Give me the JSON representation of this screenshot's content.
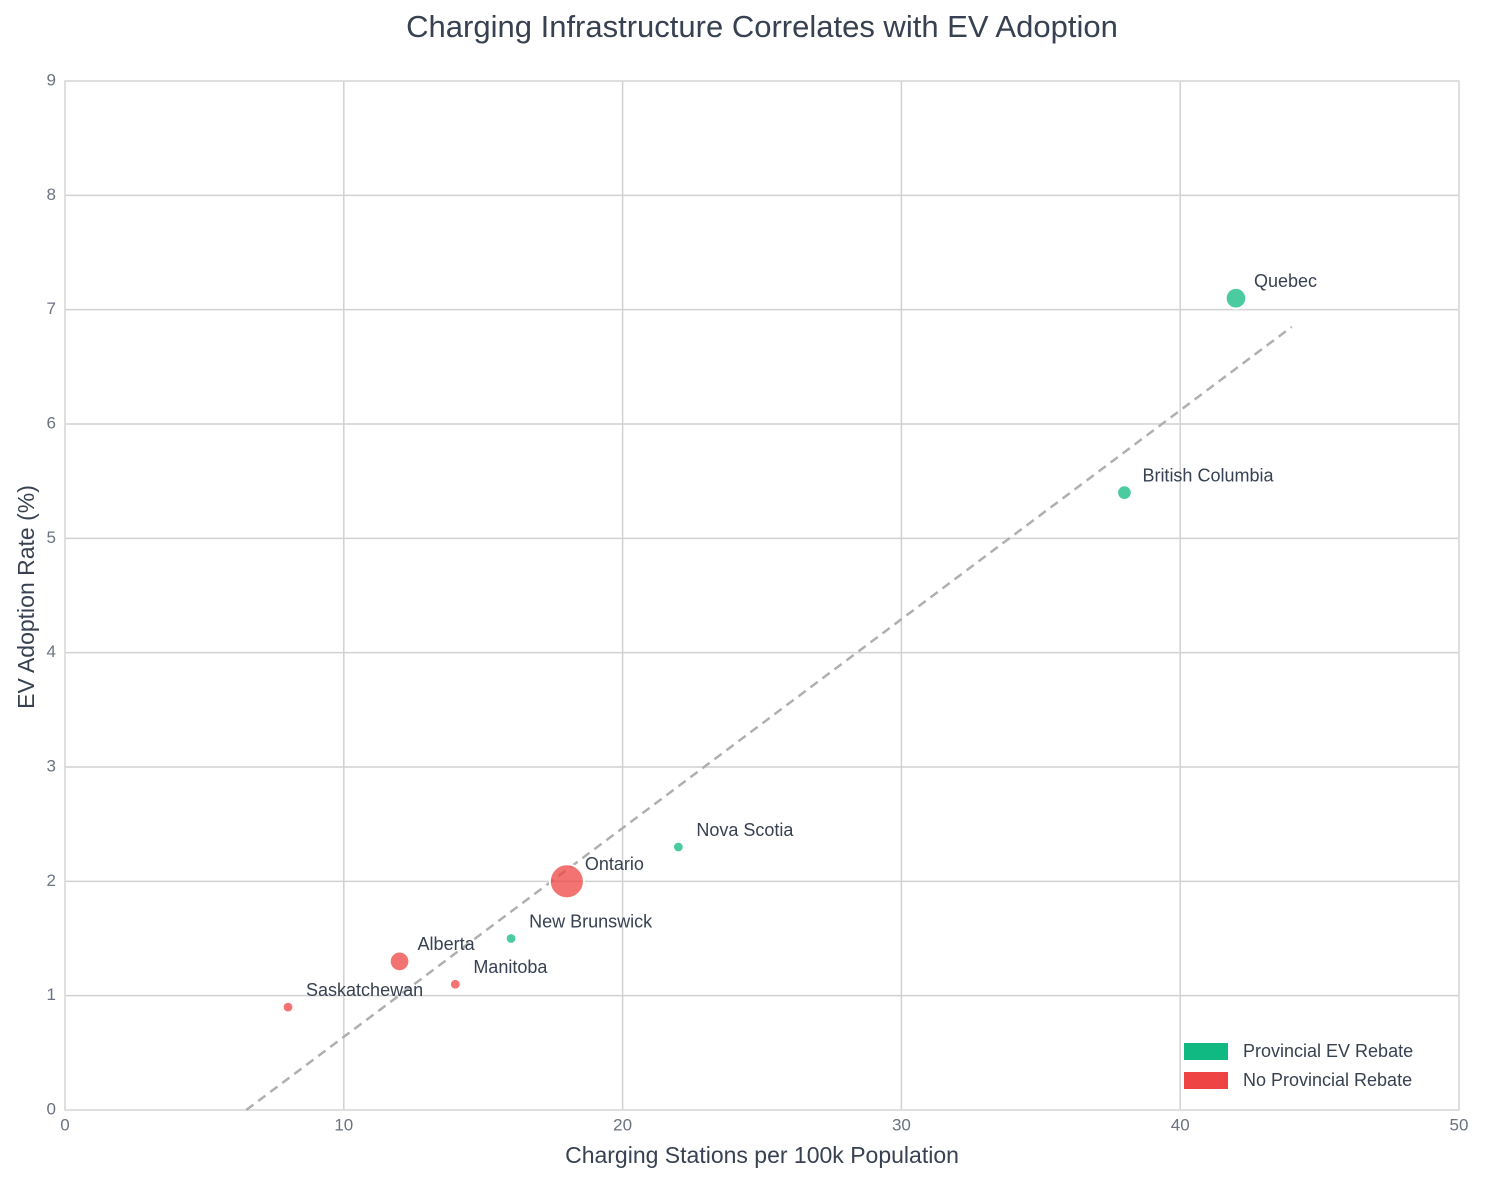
{
  "chart_data": {
    "type": "scatter",
    "title": "Charging Infrastructure Correlates with EV Adoption",
    "x_label": "Charging Stations per 100k Population",
    "y_label": "EV Adoption Rate (%)",
    "xlim": [
      0,
      50
    ],
    "xticks": [
      0,
      10,
      20,
      30,
      40,
      50
    ],
    "ylim": [
      0,
      9
    ],
    "yticks": [
      0,
      1,
      2,
      3,
      4,
      5,
      6,
      7,
      8,
      9
    ],
    "grid": true,
    "legend": "lower right",
    "series": [
      {
        "name": "Provincial EV Rebate",
        "color": "#10b981",
        "labels": [
          "Quebec",
          "British Columbia",
          "Nova Scotia",
          "New Brunswick"
        ],
        "x": [
          42,
          38,
          22,
          16
        ],
        "y": [
          7.1,
          5.4,
          2.3,
          1.5
        ],
        "sizes": [
          5.5,
          2.8,
          1.5,
          1.5
        ]
      },
      {
        "name": "No Provincial Rebate",
        "color": "#ef4444",
        "labels": [
          "Ontario",
          "Alberta",
          "Manitoba",
          "Saskatchewan"
        ],
        "x": [
          18,
          12,
          14,
          8
        ],
        "y": [
          2.0,
          1.3,
          1.1,
          0.9
        ],
        "sizes": [
          15,
          5,
          1.5,
          1.5
        ]
      }
    ],
    "trend": {
      "x": [
        6.5,
        44
      ],
      "y": [
        0,
        6.85
      ],
      "color": "#b0b0b0"
    }
  }
}
